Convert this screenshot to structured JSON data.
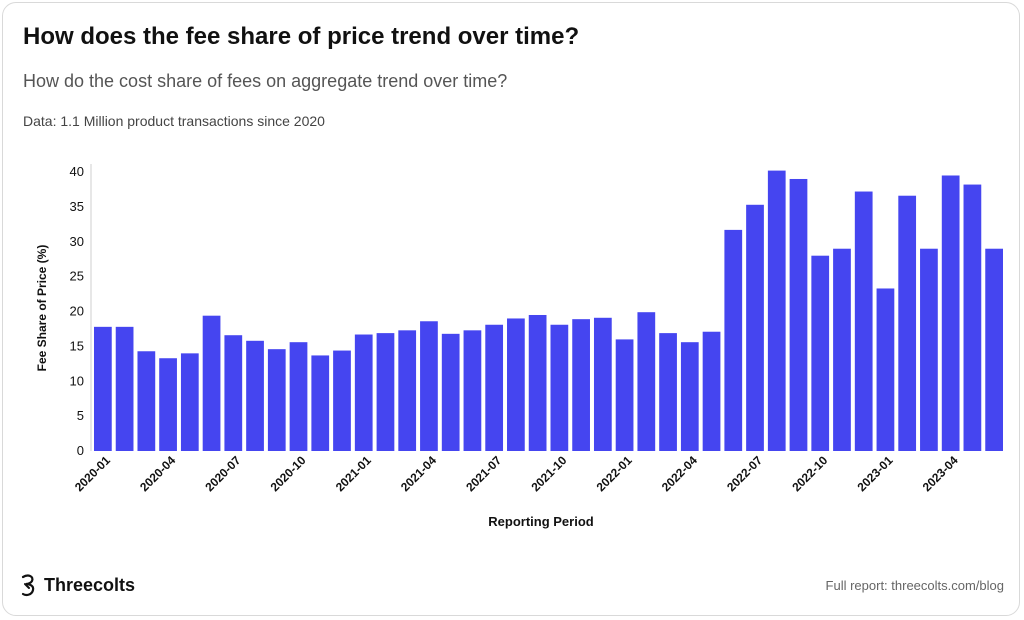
{
  "header": {
    "title": "How does the fee share of price trend over time?",
    "subtitle": "How do the cost share of fees on aggregate trend over time?",
    "source": "Data: 1.1 Million product transactions since 2020"
  },
  "footer": {
    "brand": "Threecolts",
    "link": "Full report: threecolts.com/blog"
  },
  "colors": {
    "bar": "#4545f0",
    "text": "#111111"
  },
  "chart_data": {
    "type": "bar",
    "xlabel": "Reporting Period",
    "ylabel": "Fee Share of Price (%)",
    "ylim": [
      0,
      40
    ],
    "yticks": [
      0,
      5,
      10,
      15,
      20,
      25,
      30,
      35,
      40
    ],
    "grid": false,
    "categories": [
      "2020-01",
      "2020-02",
      "2020-03",
      "2020-04",
      "2020-05",
      "2020-06",
      "2020-07",
      "2020-08",
      "2020-09",
      "2020-10",
      "2020-11",
      "2020-12",
      "2021-01",
      "2021-02",
      "2021-03",
      "2021-04",
      "2021-05",
      "2021-06",
      "2021-07",
      "2021-08",
      "2021-09",
      "2021-10",
      "2021-11",
      "2021-12",
      "2022-01",
      "2022-02",
      "2022-03",
      "2022-04",
      "2022-05",
      "2022-06",
      "2022-07",
      "2022-08",
      "2022-09",
      "2022-10",
      "2022-11",
      "2022-12",
      "2023-01",
      "2023-02",
      "2023-03",
      "2023-04",
      "2023-05",
      "2023-06"
    ],
    "tick_labels": [
      "2020-01",
      "2020-04",
      "2020-07",
      "2020-10",
      "2021-01",
      "2021-04",
      "2021-07",
      "2021-10",
      "2022-01",
      "2022-04",
      "2022-07",
      "2022-10",
      "2023-01",
      "2023-04"
    ],
    "values": [
      17.8,
      17.8,
      14.3,
      13.3,
      14.0,
      19.4,
      16.6,
      15.8,
      14.6,
      15.6,
      13.7,
      14.4,
      16.7,
      16.9,
      17.3,
      18.6,
      16.8,
      17.3,
      18.1,
      19.0,
      19.5,
      18.1,
      18.9,
      19.1,
      16.0,
      19.9,
      16.9,
      15.6,
      17.1,
      31.7,
      35.3,
      40.2,
      39.0,
      28.0,
      29.0,
      37.2,
      23.3,
      36.6,
      29.0,
      39.5,
      38.2,
      29.0
    ]
  }
}
